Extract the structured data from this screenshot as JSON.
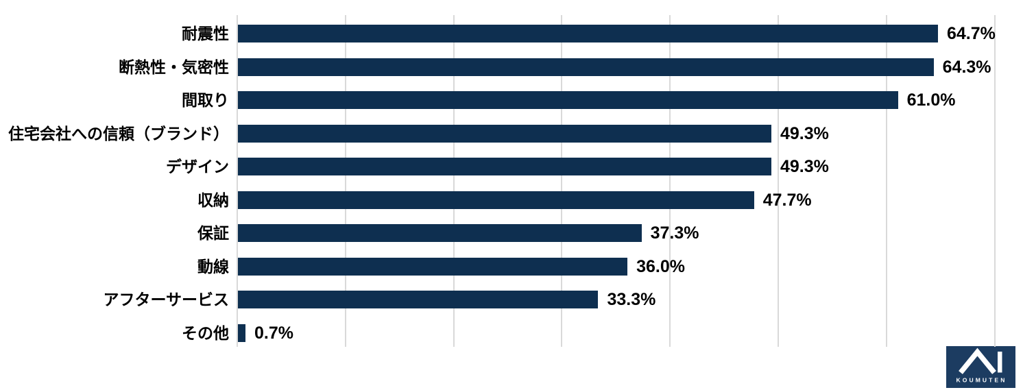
{
  "chart_data": {
    "type": "bar",
    "orientation": "horizontal",
    "title": "",
    "categories": [
      "耐震性",
      "断熱性・気密性",
      "間取り",
      "住宅会社への信頼（ブランド）",
      "デザイン",
      "収納",
      "保証",
      "動線",
      "アフターサービス",
      "その他"
    ],
    "values": [
      64.7,
      64.3,
      61.0,
      49.3,
      49.3,
      47.7,
      37.3,
      36.0,
      33.3,
      0.7
    ],
    "value_labels": [
      "64.7%",
      "64.3%",
      "61.0%",
      "49.3%",
      "49.3%",
      "47.7%",
      "37.3%",
      "36.0%",
      "33.3%",
      "0.7%"
    ],
    "xlabel": "",
    "ylabel": "",
    "xlim": [
      0,
      70
    ],
    "gridline_step": 10,
    "grid": true,
    "legend": false,
    "bar_color": "#0e2f50",
    "gridline_color": "#d9d9d9",
    "label_color": "#000000",
    "background_color": "#ffffff"
  },
  "logo": {
    "caption": "KOUMUTEN",
    "background": "#1c3c61",
    "foreground": "#ffffff"
  }
}
